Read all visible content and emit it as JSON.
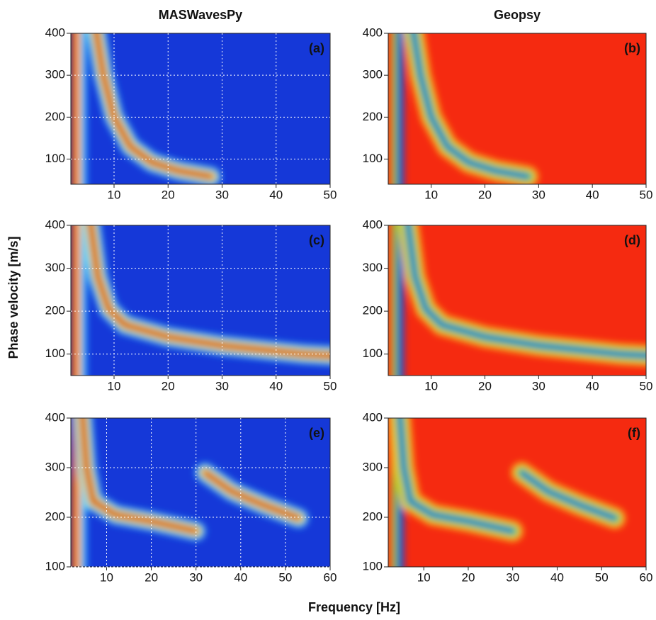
{
  "figure": {
    "column_titles": [
      "MASWavesPy",
      "Geopsy"
    ],
    "y_label": "Phase velocity [m/s]",
    "x_label": "Frequency [Hz]"
  },
  "chart_data": [
    {
      "type": "heatmap",
      "label": "(a)",
      "xlim": [
        2,
        50
      ],
      "ylim": [
        40,
        400
      ],
      "xticks": [
        10,
        20,
        30,
        40,
        50
      ],
      "yticks": [
        100,
        200,
        300,
        400
      ],
      "grid": true,
      "colormap": "jet"
    },
    {
      "type": "heatmap",
      "label": "(b)",
      "xlim": [
        2,
        50
      ],
      "ylim": [
        40,
        400
      ],
      "xticks": [
        10,
        20,
        30,
        40,
        50
      ],
      "yticks": [
        100,
        200,
        300,
        400
      ],
      "grid": false,
      "colormap": "geopsy"
    },
    {
      "type": "heatmap",
      "label": "(c)",
      "xlim": [
        2,
        50
      ],
      "ylim": [
        50,
        400
      ],
      "xticks": [
        10,
        20,
        30,
        40,
        50
      ],
      "yticks": [
        100,
        200,
        300,
        400
      ],
      "grid": true,
      "colormap": "jet"
    },
    {
      "type": "heatmap",
      "label": "(d)",
      "xlim": [
        2,
        50
      ],
      "ylim": [
        50,
        400
      ],
      "xticks": [
        10,
        20,
        30,
        40,
        50
      ],
      "yticks": [
        100,
        200,
        300,
        400
      ],
      "grid": false,
      "colormap": "geopsy"
    },
    {
      "type": "heatmap",
      "label": "(e)",
      "xlim": [
        2,
        60
      ],
      "ylim": [
        100,
        400
      ],
      "xticks": [
        10,
        20,
        30,
        40,
        50,
        60
      ],
      "yticks": [
        100,
        200,
        300,
        400
      ],
      "grid": true,
      "colormap": "jet"
    },
    {
      "type": "heatmap",
      "label": "(f)",
      "xlim": [
        2,
        60
      ],
      "ylim": [
        100,
        400
      ],
      "xticks": [
        10,
        20,
        30,
        40,
        50,
        60
      ],
      "yticks": [
        100,
        200,
        300,
        400
      ],
      "grid": false,
      "colormap": "geopsy"
    }
  ]
}
